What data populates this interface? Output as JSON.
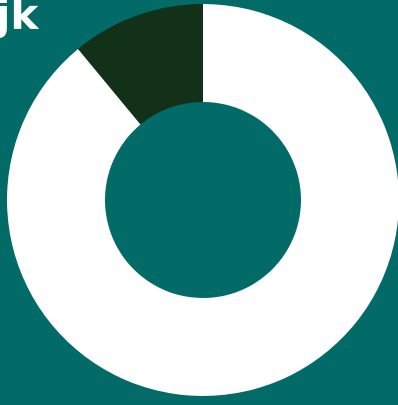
{
  "title": "jk",
  "chart_data": {
    "type": "pie",
    "style": "donut",
    "title": "jk",
    "values": [
      89,
      11
    ],
    "colors": [
      "#ffffff",
      "#123118"
    ],
    "background": "#026b68"
  }
}
